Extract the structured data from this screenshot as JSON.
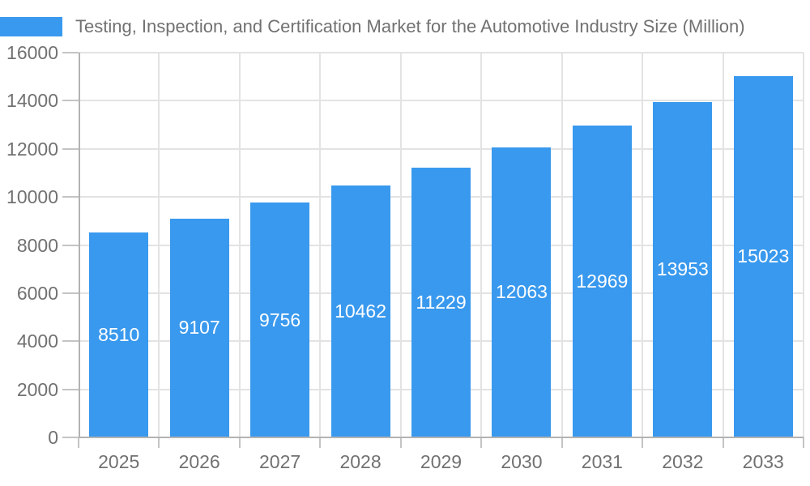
{
  "chart_data": {
    "type": "bar",
    "title": "Testing, Inspection, and Certification Market for the Automotive Industry Size (Million)",
    "categories": [
      "2025",
      "2026",
      "2027",
      "2028",
      "2029",
      "2030",
      "2031",
      "2032",
      "2033"
    ],
    "values": [
      8510,
      9107,
      9756,
      10462,
      11229,
      12063,
      12969,
      13953,
      15023
    ],
    "series": [
      {
        "name": "Testing, Inspection, and Certification Market for the Automotive Industry Size (Million)",
        "values": [
          8510,
          9107,
          9756,
          10462,
          11229,
          12063,
          12969,
          13953,
          15023
        ]
      }
    ],
    "xlabel": "",
    "ylabel": "",
    "ylim": [
      0,
      16000
    ],
    "yticks": [
      0,
      2000,
      4000,
      6000,
      8000,
      10000,
      12000,
      14000,
      16000
    ],
    "grid": true,
    "legend_position": "top-left",
    "bar_color": "#3999EE",
    "value_label_color": "#ffffff",
    "axis_text_color": "#717171",
    "gridline_color": "#e3e3e3",
    "axis_line_color": "#b3b3b3"
  }
}
